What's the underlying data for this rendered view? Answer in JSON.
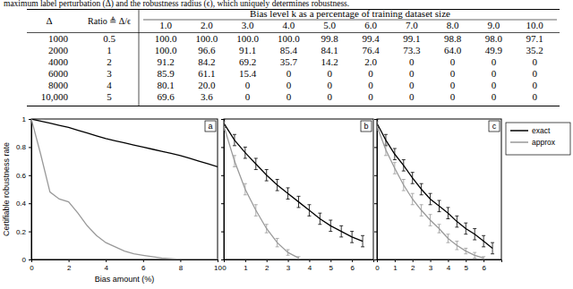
{
  "caption_top": "maximum label perturbation (Δ) and the robustness radius (ϵ), which uniquely determines robustness.",
  "table": {
    "header": [
      "Δ",
      "Ratio ≜ Δ/ϵ"
    ],
    "group_header": "Bias level k as a percentage of training dataset size",
    "columns": [
      "1.0",
      "2.0",
      "3.0",
      "4.0",
      "5.0",
      "6.0",
      "7.0",
      "8.0",
      "9.0",
      "10.0"
    ],
    "rows": [
      [
        "1000",
        "0.5",
        "100.0",
        "100.0",
        "100.0",
        "100.0",
        "99.8",
        "99.4",
        "99.1",
        "98.8",
        "98.0",
        "97.1"
      ],
      [
        "2000",
        "1",
        "100.0",
        "96.6",
        "91.1",
        "85.4",
        "84.1",
        "76.4",
        "73.3",
        "64.0",
        "49.9",
        "35.2"
      ],
      [
        "4000",
        "2",
        "91.2",
        "84.2",
        "69.2",
        "35.7",
        "14.2",
        "2.0",
        "0",
        "0",
        "0",
        "0"
      ],
      [
        "6000",
        "3",
        "85.9",
        "61.1",
        "15.4",
        "0",
        "0",
        "0",
        "0",
        "0",
        "0",
        "0"
      ],
      [
        "8000",
        "4",
        "80.1",
        "20.0",
        "0",
        "0",
        "0",
        "0",
        "0",
        "0",
        "0",
        "0"
      ],
      [
        "10,000",
        "5",
        "69.6",
        "3.6",
        "0",
        "0",
        "0",
        "0",
        "0",
        "0",
        "0",
        "0"
      ]
    ]
  },
  "chart_data": [
    {
      "type": "line",
      "title": "a",
      "x_label": "Bias amount (%)",
      "y_label": "Certifiable robustness rate",
      "xlim": [
        0,
        10
      ],
      "xticks": [
        0,
        2,
        4,
        6,
        8,
        10
      ],
      "ylim": [
        0,
        1
      ],
      "yticks": [
        0,
        0.2,
        0.4,
        0.6,
        0.8,
        1
      ],
      "x": [
        0,
        0.5,
        1,
        1.5,
        2,
        2.5,
        3,
        3.5,
        4,
        4.5,
        5,
        5.5,
        6,
        6.5,
        7,
        7.5,
        8,
        8.5,
        9,
        9.5,
        10
      ],
      "series": [
        {
          "name": "exact",
          "color": "#000000",
          "values": [
            1,
            0.985,
            0.97,
            0.955,
            0.94,
            0.92,
            0.9,
            0.88,
            0.86,
            0.845,
            0.83,
            0.815,
            0.8,
            0.785,
            0.77,
            0.755,
            0.74,
            0.72,
            0.7,
            0.68,
            0.66
          ]
        },
        {
          "name": "approx",
          "color": "#999999",
          "values": [
            1,
            0.75,
            0.48,
            0.43,
            0.41,
            0.33,
            0.24,
            0.17,
            0.12,
            0.09,
            0.06,
            0.04,
            0.03,
            0.02,
            0.01,
            0.005,
            0,
            0,
            0,
            0,
            0
          ]
        }
      ]
    },
    {
      "type": "line",
      "title": "b",
      "tick_labels": "x",
      "xlim": [
        0,
        7
      ],
      "xticks": [
        0,
        1,
        2,
        3,
        4,
        5,
        6
      ],
      "ylim": [
        0,
        1
      ],
      "yticks": [
        0,
        0.2,
        0.4,
        0.6,
        0.8,
        1
      ],
      "x": [
        0,
        0.5,
        1,
        1.5,
        2,
        2.5,
        3,
        3.5,
        4,
        4.5,
        5,
        5.5,
        6,
        6.5
      ],
      "series": [
        {
          "name": "exact",
          "color": "#000000",
          "values": [
            0.97,
            0.85,
            0.76,
            0.68,
            0.6,
            0.53,
            0.47,
            0.41,
            0.35,
            0.29,
            0.24,
            0.2,
            0.16,
            0.13
          ],
          "errors": [
            0.03,
            0.04,
            0.04,
            0.04,
            0.04,
            0.04,
            0.04,
            0.04,
            0.04,
            0.04,
            0.04,
            0.04,
            0.04,
            0.04
          ]
        },
        {
          "name": "approx",
          "color": "#999999",
          "values": [
            0.95,
            0.7,
            0.5,
            0.35,
            0.22,
            0.12,
            0.05,
            0.01,
            null,
            null,
            null,
            null,
            null,
            null
          ],
          "errors": [
            0.03,
            0.04,
            0.04,
            0.04,
            0.03,
            0.03,
            0.02,
            0.01,
            null,
            null,
            null,
            null,
            null,
            null
          ]
        }
      ]
    },
    {
      "type": "line",
      "title": "c",
      "tick_labels": "x",
      "legend": "right",
      "xlim": [
        0,
        7
      ],
      "xticks": [
        0,
        1,
        2,
        3,
        4,
        5,
        6
      ],
      "ylim": [
        0,
        1
      ],
      "yticks": [
        0,
        0.2,
        0.4,
        0.6,
        0.8,
        1
      ],
      "x": [
        0,
        0.5,
        1,
        1.5,
        2,
        2.5,
        3,
        3.5,
        4,
        4.5,
        5,
        5.5,
        6,
        6.5
      ],
      "series": [
        {
          "name": "exact",
          "color": "#000000",
          "values": [
            0.97,
            0.85,
            0.75,
            0.67,
            0.58,
            0.5,
            0.43,
            0.38,
            0.33,
            0.27,
            0.22,
            0.18,
            0.13,
            0.08
          ],
          "errors": [
            0.03,
            0.04,
            0.04,
            0.04,
            0.04,
            0.04,
            0.04,
            0.04,
            0.04,
            0.04,
            0.04,
            0.04,
            0.04,
            0.04
          ]
        },
        {
          "name": "approx",
          "color": "#999999",
          "values": [
            0.95,
            0.78,
            0.65,
            0.53,
            0.43,
            0.35,
            0.28,
            0.22,
            0.15,
            0.1,
            0.06,
            0.03,
            0.01,
            null
          ],
          "errors": [
            0.03,
            0.04,
            0.04,
            0.04,
            0.04,
            0.04,
            0.04,
            0.03,
            0.03,
            0.03,
            0.02,
            0.02,
            0.01,
            null
          ]
        }
      ]
    }
  ]
}
